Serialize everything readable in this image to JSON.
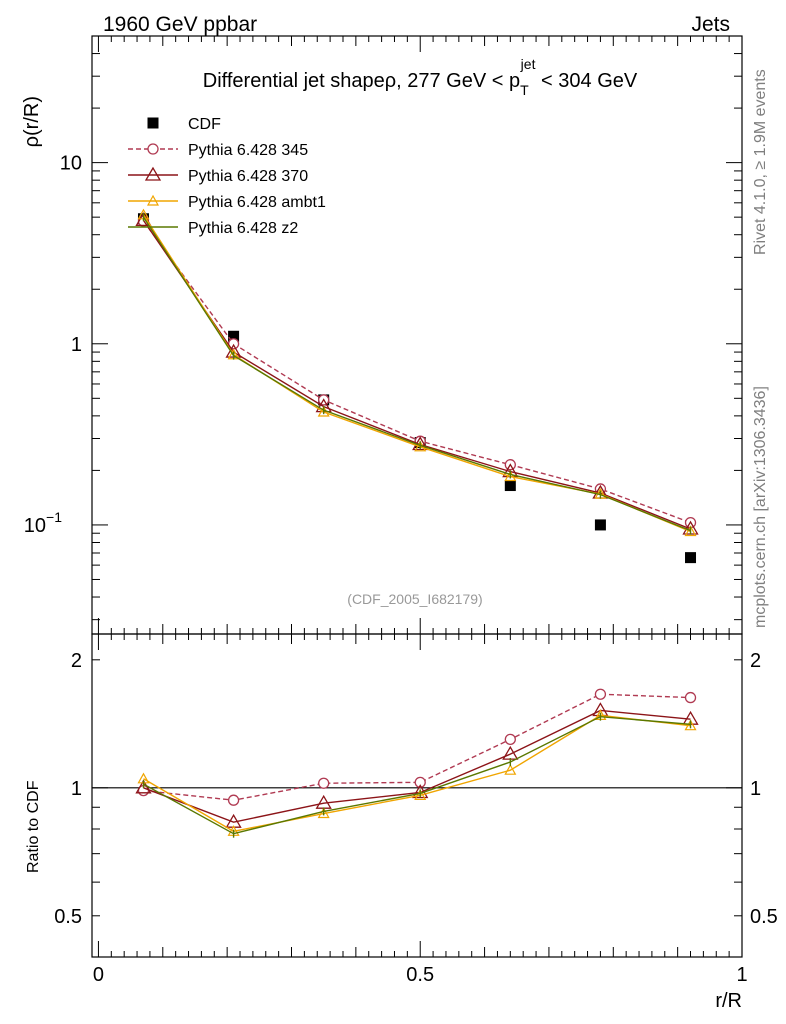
{
  "header": {
    "left": "1960 GeV ppbar",
    "right": "Jets"
  },
  "side": {
    "rivet": "Rivet 4.1.0, ≥ 1.9M events",
    "mcplots": "mcplots.cern.ch [arXiv:1306.3436]"
  },
  "watermark": "(CDF_2005_I682179)",
  "chart_data": [
    {
      "type": "line",
      "title_parts": {
        "pre": "Differential jet shapeρ, 277 GeV < p",
        "sub": "T",
        "sup": "jet",
        "post": " < 304 GeV"
      },
      "ylabel": "ρ(r/R)",
      "yscale": "log",
      "ylim": [
        0.025,
        50
      ],
      "xlim": [
        -0.01,
        1.0
      ],
      "yticks": [
        {
          "v": 10,
          "label": "10"
        },
        {
          "v": 1,
          "label": "1"
        },
        {
          "v": 0.1,
          "label": "10",
          "exp": "−1"
        }
      ],
      "x": [
        0.07,
        0.21,
        0.35,
        0.5,
        0.64,
        0.78,
        0.92
      ],
      "series": [
        {
          "name": "CDF",
          "color": "#000000",
          "marker": "square",
          "line": "none",
          "values": [
            4.9,
            1.1,
            0.49,
            0.285,
            0.165,
            0.1,
            0.066
          ]
        },
        {
          "name": "Pythia 6.428 345",
          "color": "#b03a52",
          "marker": "circle",
          "line": "dashed",
          "values": [
            4.75,
            1.0,
            0.49,
            0.29,
            0.215,
            0.158,
            0.103
          ]
        },
        {
          "name": "Pythia 6.428 370",
          "color": "#8c1418",
          "marker": "triangle",
          "line": "solid",
          "values": [
            4.8,
            0.9,
            0.45,
            0.278,
            0.197,
            0.15,
            0.095
          ]
        },
        {
          "name": "Pythia 6.428 ambt1",
          "color": "#f0a500",
          "marker": "triangle-small",
          "line": "solid",
          "values": [
            5.15,
            0.87,
            0.42,
            0.27,
            0.185,
            0.148,
            0.092
          ]
        },
        {
          "name": "Pythia 6.428 z2",
          "color": "#5a7800",
          "marker": "none",
          "line": "solid",
          "values": [
            5.0,
            0.86,
            0.43,
            0.275,
            0.19,
            0.147,
            0.093
          ]
        }
      ]
    },
    {
      "type": "line",
      "title": "",
      "ylabel": "Ratio to CDF",
      "xlabel": "r/R",
      "yscale": "log",
      "ylim": [
        0.4,
        2.3
      ],
      "xlim": [
        -0.01,
        1.0
      ],
      "yticks": [
        {
          "v": 2,
          "label": "2"
        },
        {
          "v": 1,
          "label": "1"
        },
        {
          "v": 0.5,
          "label": "0.5"
        }
      ],
      "xticks": [
        {
          "v": 0,
          "label": "0"
        },
        {
          "v": 0.5,
          "label": "0.5"
        },
        {
          "v": 1,
          "label": "1"
        }
      ],
      "x": [
        0.07,
        0.21,
        0.35,
        0.5,
        0.64,
        0.78,
        0.92
      ],
      "series": [
        {
          "name": "Pythia 6.428 345",
          "color": "#b03a52",
          "marker": "circle",
          "line": "dashed",
          "values": [
            0.985,
            0.935,
            1.025,
            1.03,
            1.3,
            1.66,
            1.63
          ]
        },
        {
          "name": "Pythia 6.428 370",
          "color": "#8c1418",
          "marker": "triangle",
          "line": "solid",
          "values": [
            1.0,
            0.83,
            0.92,
            0.975,
            1.2,
            1.52,
            1.45
          ]
        },
        {
          "name": "Pythia 6.428 ambt1",
          "color": "#f0a500",
          "marker": "triangle-small",
          "line": "solid",
          "values": [
            1.05,
            0.79,
            0.87,
            0.96,
            1.1,
            1.48,
            1.4
          ]
        },
        {
          "name": "Pythia 6.428 z2",
          "color": "#5a7800",
          "marker": "none",
          "line": "solid",
          "values": [
            1.02,
            0.78,
            0.88,
            0.97,
            1.15,
            1.47,
            1.41
          ]
        }
      ]
    }
  ]
}
